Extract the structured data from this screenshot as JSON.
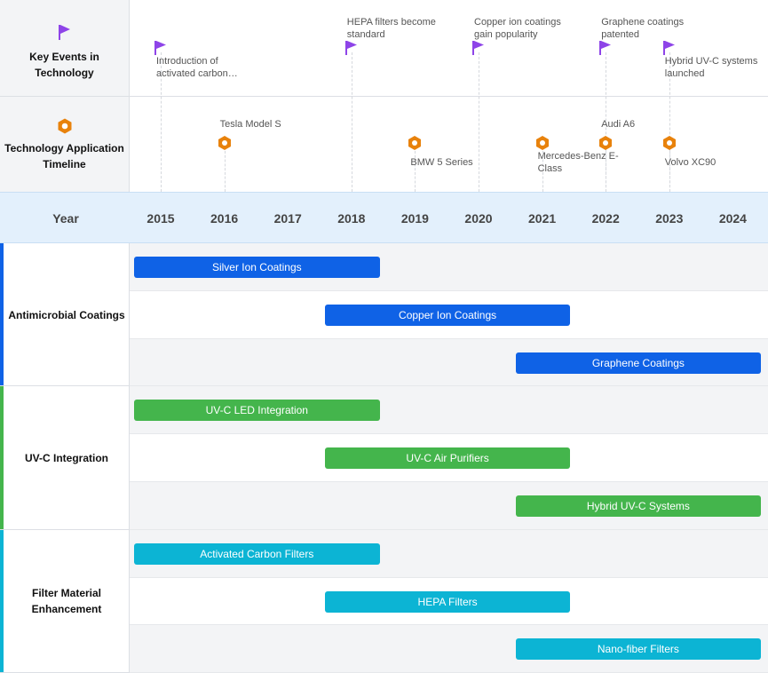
{
  "lanes": {
    "events_label": "Key Events in Technology",
    "apps_label": "Technology Application Timeline",
    "year_label": "Year"
  },
  "years": [
    "2015",
    "2016",
    "2017",
    "2018",
    "2019",
    "2020",
    "2021",
    "2022",
    "2023",
    "2024"
  ],
  "key_events": [
    {
      "year": 2015,
      "text": "Introduction of activated carbon…",
      "row": "low"
    },
    {
      "year": 2018,
      "text": "HEPA filters become standard",
      "row": "high"
    },
    {
      "year": 2020,
      "text": "Copper ion coatings gain popularity",
      "row": "high"
    },
    {
      "year": 2022,
      "text": "Graphene coatings patented",
      "row": "high"
    },
    {
      "year": 2023,
      "text": "Hybrid UV-C systems launched",
      "row": "low"
    }
  ],
  "applications": [
    {
      "year": 2016,
      "text": "Tesla Model S",
      "pos": "above"
    },
    {
      "year": 2019,
      "text": "BMW 5 Series",
      "pos": "below"
    },
    {
      "year": 2021,
      "text": "Mercedes-Benz E-Class",
      "pos": "below"
    },
    {
      "year": 2022,
      "text": "Audi A6",
      "pos": "above"
    },
    {
      "year": 2023,
      "text": "Volvo XC90",
      "pos": "below"
    }
  ],
  "colors": {
    "event_flag": "#8e44e8",
    "app_marker": "#e8820c",
    "antimicrobial": "#0f62e6",
    "uvc": "#44b54c",
    "filter": "#0cb4d4",
    "header_bg": "#e3f0fc",
    "lane_bg": "#f3f4f6",
    "row_alt": "#f3f4f6"
  },
  "chart_data": {
    "type": "gantt",
    "x_range": [
      2015,
      2024
    ],
    "groups": [
      {
        "name": "Antimicrobial Coatings",
        "color": "#0f62e6",
        "tasks": [
          {
            "label": "Silver Ion Coatings",
            "start": 2015,
            "end": 2018.5
          },
          {
            "label": "Copper Ion Coatings",
            "start": 2018,
            "end": 2021.5
          },
          {
            "label": "Graphene Coatings",
            "start": 2021,
            "end": 2024.5
          }
        ]
      },
      {
        "name": "UV-C Integration",
        "color": "#44b54c",
        "tasks": [
          {
            "label": "UV-C LED Integration",
            "start": 2015,
            "end": 2018.5
          },
          {
            "label": "UV-C Air Purifiers",
            "start": 2018,
            "end": 2021.5
          },
          {
            "label": "Hybrid UV-C Systems",
            "start": 2021,
            "end": 2024.5
          }
        ]
      },
      {
        "name": "Filter Material Enhancement",
        "color": "#0cb4d4",
        "tasks": [
          {
            "label": "Activated Carbon Filters",
            "start": 2015,
            "end": 2018.5
          },
          {
            "label": "HEPA Filters",
            "start": 2018,
            "end": 2021.5
          },
          {
            "label": "Nano-fiber Filters",
            "start": 2021,
            "end": 2024.5
          }
        ]
      }
    ]
  }
}
